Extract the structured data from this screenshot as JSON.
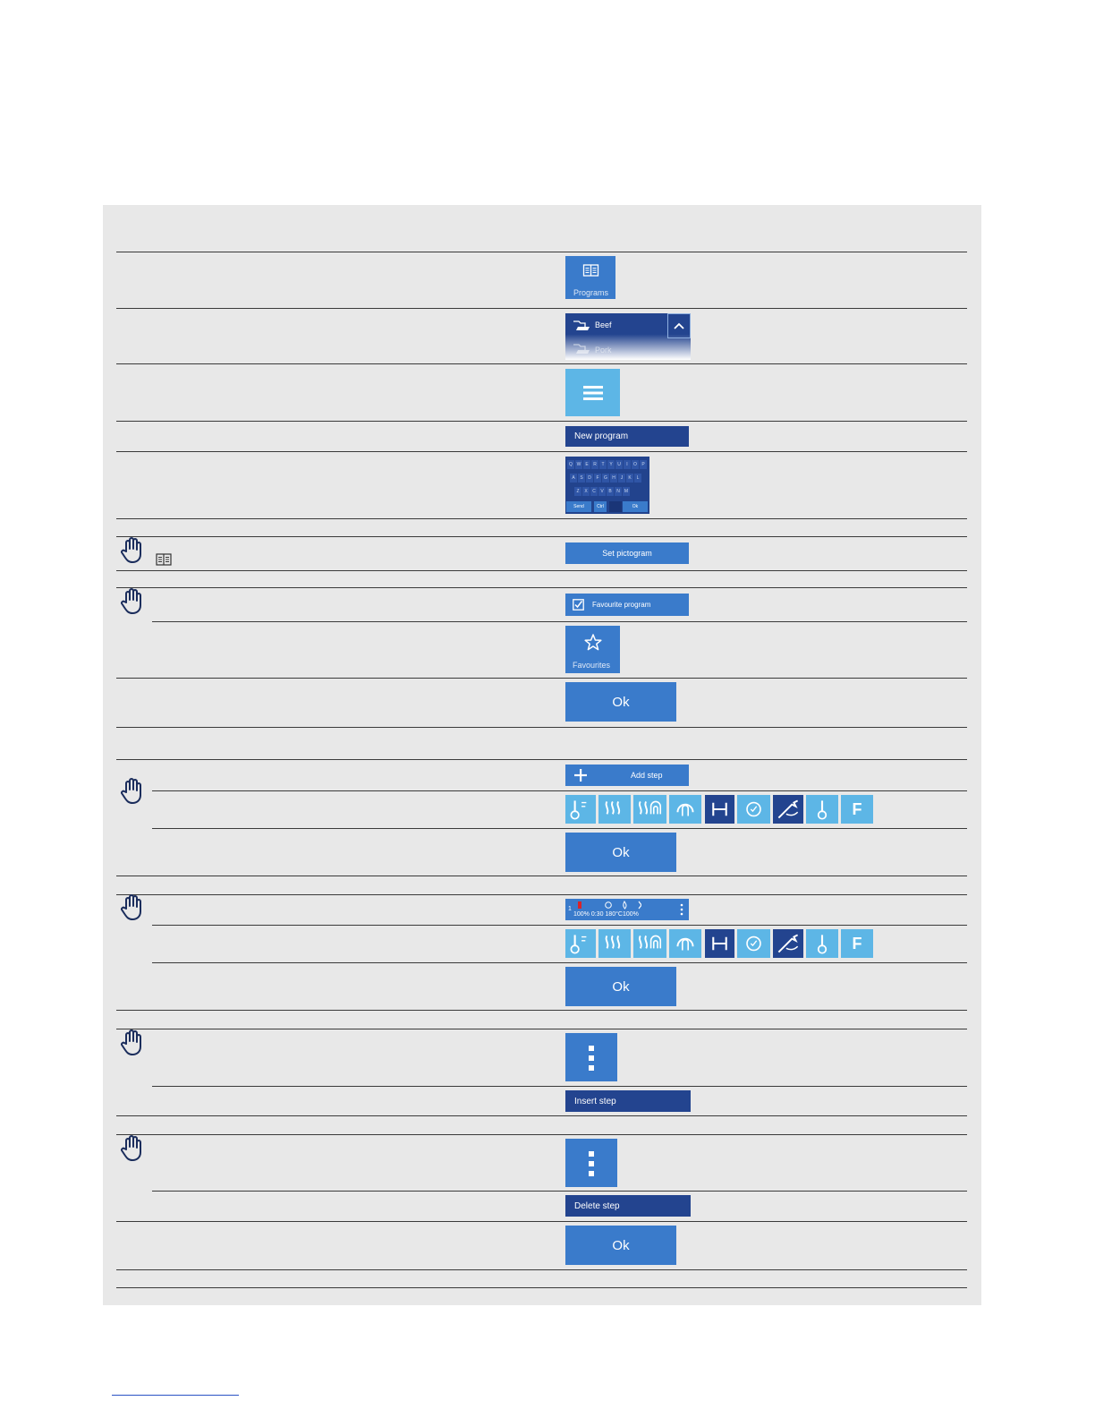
{
  "programs": {
    "label": "Programs",
    "icon": "book-icon"
  },
  "list": {
    "item1": "Beef",
    "item2": "Pork",
    "icon": "chevron-up-icon"
  },
  "menu": {
    "icon": "hamburger-menu-icon"
  },
  "new_program": {
    "label": "New program"
  },
  "keyboard": {
    "row1": [
      "Q",
      "W",
      "E",
      "R",
      "T",
      "Y",
      "U",
      "I",
      "O",
      "P"
    ],
    "row2": [
      "A",
      "S",
      "D",
      "F",
      "G",
      "H",
      "J",
      "K",
      "L"
    ],
    "row3": [
      "Z",
      "X",
      "C",
      "V",
      "B",
      "N",
      "M"
    ],
    "bottom": [
      "Send",
      "Ctrl",
      "",
      "Ok"
    ]
  },
  "pictogram": {
    "label": "Set pictogram",
    "note_icon": "book-icon"
  },
  "favourite_program": {
    "label": "Favourite program",
    "icon": "checkbox-checked-icon"
  },
  "favourites": {
    "label": "Favourites",
    "icon": "star-icon"
  },
  "ok_label": "Ok",
  "add_step": {
    "label": "Add step",
    "icon": "plus-icon"
  },
  "step_icons": [
    "thermometer-fan-icon",
    "steam-icon",
    "combi-steam-icon",
    "humidity-icon",
    "fixed-interval-icon",
    "timer-icon",
    "probe-icon",
    "core-temperature-icon",
    "f-value-icon"
  ],
  "step_f_label": "F",
  "step_bar": {
    "index": "1",
    "values": "100% 0:30 180°C100%"
  },
  "insert_step": {
    "label": "Insert step"
  },
  "delete_step": {
    "label": "Delete step"
  },
  "colors": {
    "mid_blue": "#3a7bcb",
    "dark_blue": "#23448f",
    "light_blue": "#5db6e6",
    "panel": "#e8e8e8"
  }
}
